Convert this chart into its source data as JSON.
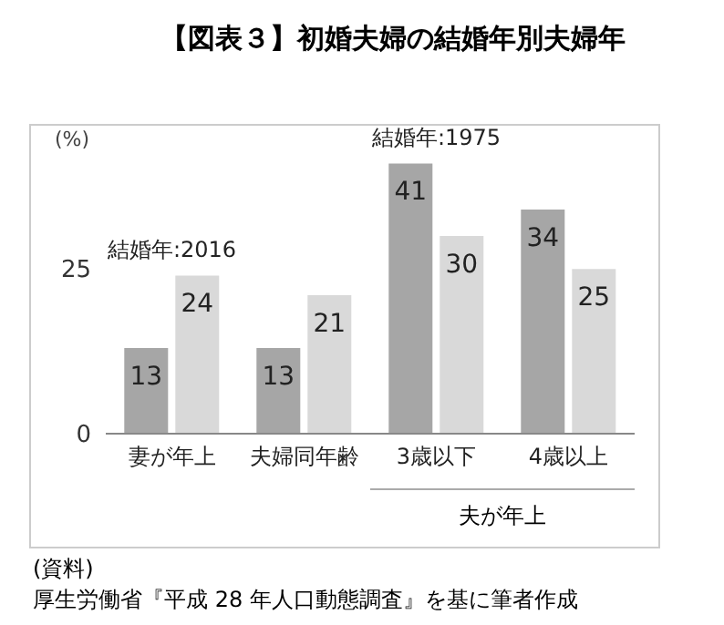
{
  "chart_data": {
    "type": "bar",
    "title": "【図表３】初婚夫婦の結婚年別夫婦年",
    "ylabel": "(%)",
    "categories": [
      "妻が年上",
      "夫婦同年齢",
      "3歳以下",
      "4歳以上"
    ],
    "series": [
      {
        "color": "#a6a6a6",
        "values": [
          13,
          13,
          41,
          34
        ]
      },
      {
        "color": "#d9d9d9",
        "values": [
          24,
          21,
          30,
          25
        ]
      }
    ],
    "ylim": [
      0,
      47
    ],
    "yticks": [
      0,
      25
    ],
    "grid": false,
    "data_labels": true,
    "annotations": [
      {
        "text": "結婚年:2016",
        "x": "妻が年上",
        "y": 24
      },
      {
        "text": "結婚年:1975",
        "x": "3歳以下",
        "y": 41
      },
      "夫が年上",
      "(資料)",
      "厚生労働省『平成 28 年人口動態調査』を基に筆者作成"
    ]
  }
}
